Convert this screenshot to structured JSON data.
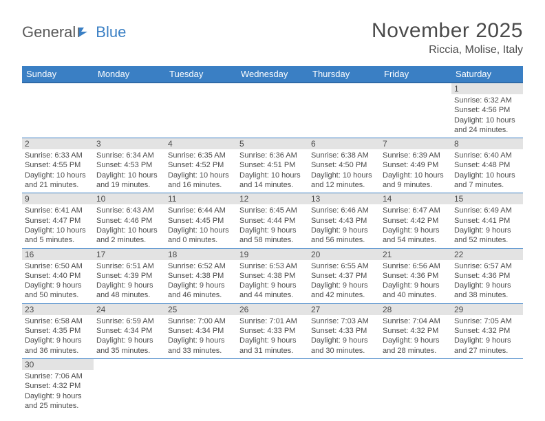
{
  "logo": {
    "text1": "General",
    "text2": "Blue"
  },
  "title": "November 2025",
  "location": "Riccia, Molise, Italy",
  "days_of_week": [
    "Sunday",
    "Monday",
    "Tuesday",
    "Wednesday",
    "Thursday",
    "Friday",
    "Saturday"
  ],
  "colors": {
    "header_bg": "#3a7fc4",
    "header_text": "#ffffff",
    "daynum_bg": "#e3e3e3",
    "border": "#3a7fc4",
    "text": "#4a4a4a"
  },
  "weeks": [
    [
      null,
      null,
      null,
      null,
      null,
      null,
      {
        "n": "1",
        "sr": "Sunrise: 6:32 AM",
        "ss": "Sunset: 4:56 PM",
        "d1": "Daylight: 10 hours",
        "d2": "and 24 minutes."
      }
    ],
    [
      {
        "n": "2",
        "sr": "Sunrise: 6:33 AM",
        "ss": "Sunset: 4:55 PM",
        "d1": "Daylight: 10 hours",
        "d2": "and 21 minutes."
      },
      {
        "n": "3",
        "sr": "Sunrise: 6:34 AM",
        "ss": "Sunset: 4:53 PM",
        "d1": "Daylight: 10 hours",
        "d2": "and 19 minutes."
      },
      {
        "n": "4",
        "sr": "Sunrise: 6:35 AM",
        "ss": "Sunset: 4:52 PM",
        "d1": "Daylight: 10 hours",
        "d2": "and 16 minutes."
      },
      {
        "n": "5",
        "sr": "Sunrise: 6:36 AM",
        "ss": "Sunset: 4:51 PM",
        "d1": "Daylight: 10 hours",
        "d2": "and 14 minutes."
      },
      {
        "n": "6",
        "sr": "Sunrise: 6:38 AM",
        "ss": "Sunset: 4:50 PM",
        "d1": "Daylight: 10 hours",
        "d2": "and 12 minutes."
      },
      {
        "n": "7",
        "sr": "Sunrise: 6:39 AM",
        "ss": "Sunset: 4:49 PM",
        "d1": "Daylight: 10 hours",
        "d2": "and 9 minutes."
      },
      {
        "n": "8",
        "sr": "Sunrise: 6:40 AM",
        "ss": "Sunset: 4:48 PM",
        "d1": "Daylight: 10 hours",
        "d2": "and 7 minutes."
      }
    ],
    [
      {
        "n": "9",
        "sr": "Sunrise: 6:41 AM",
        "ss": "Sunset: 4:47 PM",
        "d1": "Daylight: 10 hours",
        "d2": "and 5 minutes."
      },
      {
        "n": "10",
        "sr": "Sunrise: 6:43 AM",
        "ss": "Sunset: 4:46 PM",
        "d1": "Daylight: 10 hours",
        "d2": "and 2 minutes."
      },
      {
        "n": "11",
        "sr": "Sunrise: 6:44 AM",
        "ss": "Sunset: 4:45 PM",
        "d1": "Daylight: 10 hours",
        "d2": "and 0 minutes."
      },
      {
        "n": "12",
        "sr": "Sunrise: 6:45 AM",
        "ss": "Sunset: 4:44 PM",
        "d1": "Daylight: 9 hours",
        "d2": "and 58 minutes."
      },
      {
        "n": "13",
        "sr": "Sunrise: 6:46 AM",
        "ss": "Sunset: 4:43 PM",
        "d1": "Daylight: 9 hours",
        "d2": "and 56 minutes."
      },
      {
        "n": "14",
        "sr": "Sunrise: 6:47 AM",
        "ss": "Sunset: 4:42 PM",
        "d1": "Daylight: 9 hours",
        "d2": "and 54 minutes."
      },
      {
        "n": "15",
        "sr": "Sunrise: 6:49 AM",
        "ss": "Sunset: 4:41 PM",
        "d1": "Daylight: 9 hours",
        "d2": "and 52 minutes."
      }
    ],
    [
      {
        "n": "16",
        "sr": "Sunrise: 6:50 AM",
        "ss": "Sunset: 4:40 PM",
        "d1": "Daylight: 9 hours",
        "d2": "and 50 minutes."
      },
      {
        "n": "17",
        "sr": "Sunrise: 6:51 AM",
        "ss": "Sunset: 4:39 PM",
        "d1": "Daylight: 9 hours",
        "d2": "and 48 minutes."
      },
      {
        "n": "18",
        "sr": "Sunrise: 6:52 AM",
        "ss": "Sunset: 4:38 PM",
        "d1": "Daylight: 9 hours",
        "d2": "and 46 minutes."
      },
      {
        "n": "19",
        "sr": "Sunrise: 6:53 AM",
        "ss": "Sunset: 4:38 PM",
        "d1": "Daylight: 9 hours",
        "d2": "and 44 minutes."
      },
      {
        "n": "20",
        "sr": "Sunrise: 6:55 AM",
        "ss": "Sunset: 4:37 PM",
        "d1": "Daylight: 9 hours",
        "d2": "and 42 minutes."
      },
      {
        "n": "21",
        "sr": "Sunrise: 6:56 AM",
        "ss": "Sunset: 4:36 PM",
        "d1": "Daylight: 9 hours",
        "d2": "and 40 minutes."
      },
      {
        "n": "22",
        "sr": "Sunrise: 6:57 AM",
        "ss": "Sunset: 4:36 PM",
        "d1": "Daylight: 9 hours",
        "d2": "and 38 minutes."
      }
    ],
    [
      {
        "n": "23",
        "sr": "Sunrise: 6:58 AM",
        "ss": "Sunset: 4:35 PM",
        "d1": "Daylight: 9 hours",
        "d2": "and 36 minutes."
      },
      {
        "n": "24",
        "sr": "Sunrise: 6:59 AM",
        "ss": "Sunset: 4:34 PM",
        "d1": "Daylight: 9 hours",
        "d2": "and 35 minutes."
      },
      {
        "n": "25",
        "sr": "Sunrise: 7:00 AM",
        "ss": "Sunset: 4:34 PM",
        "d1": "Daylight: 9 hours",
        "d2": "and 33 minutes."
      },
      {
        "n": "26",
        "sr": "Sunrise: 7:01 AM",
        "ss": "Sunset: 4:33 PM",
        "d1": "Daylight: 9 hours",
        "d2": "and 31 minutes."
      },
      {
        "n": "27",
        "sr": "Sunrise: 7:03 AM",
        "ss": "Sunset: 4:33 PM",
        "d1": "Daylight: 9 hours",
        "d2": "and 30 minutes."
      },
      {
        "n": "28",
        "sr": "Sunrise: 7:04 AM",
        "ss": "Sunset: 4:32 PM",
        "d1": "Daylight: 9 hours",
        "d2": "and 28 minutes."
      },
      {
        "n": "29",
        "sr": "Sunrise: 7:05 AM",
        "ss": "Sunset: 4:32 PM",
        "d1": "Daylight: 9 hours",
        "d2": "and 27 minutes."
      }
    ],
    [
      {
        "n": "30",
        "sr": "Sunrise: 7:06 AM",
        "ss": "Sunset: 4:32 PM",
        "d1": "Daylight: 9 hours",
        "d2": "and 25 minutes."
      },
      null,
      null,
      null,
      null,
      null,
      null
    ]
  ]
}
